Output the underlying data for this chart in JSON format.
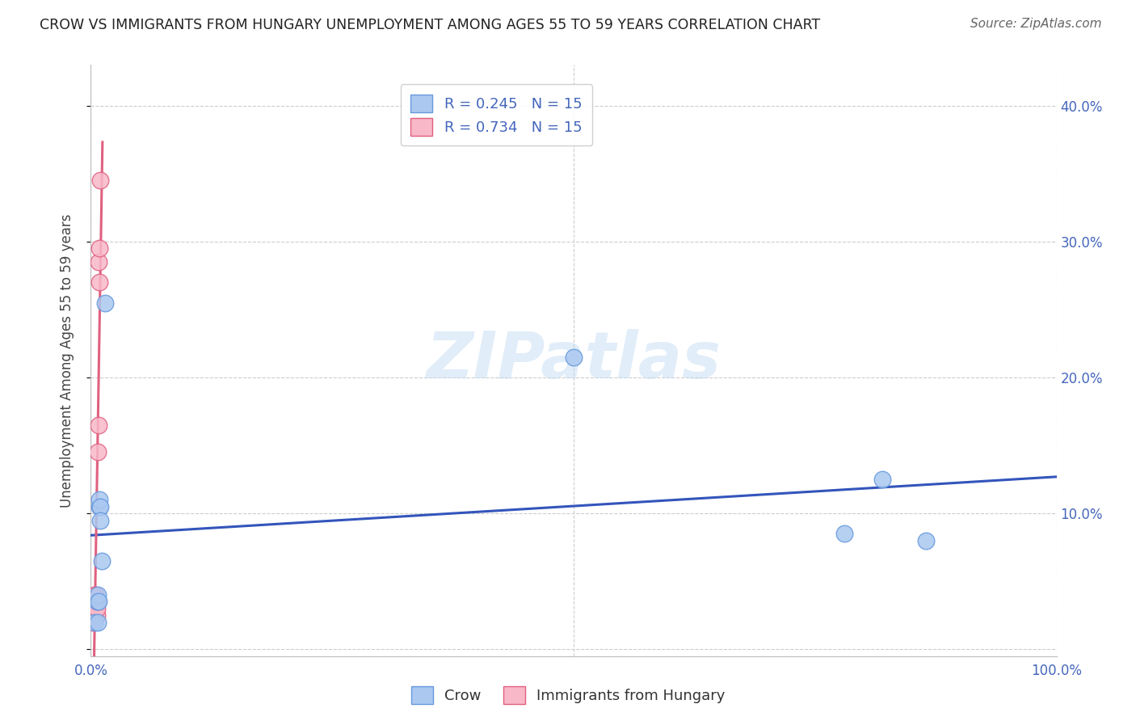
{
  "title": "CROW VS IMMIGRANTS FROM HUNGARY UNEMPLOYMENT AMONG AGES 55 TO 59 YEARS CORRELATION CHART",
  "source": "Source: ZipAtlas.com",
  "ylabel": "Unemployment Among Ages 55 to 59 years",
  "xlim": [
    0.0,
    1.0
  ],
  "ylim": [
    -0.005,
    0.43
  ],
  "crow_color": "#aac8f0",
  "crow_edge_color": "#6699dd",
  "hungary_color": "#f8b8c8",
  "hungary_edge_color": "#e06080",
  "blue_line_color": "#3355bb",
  "pink_line_color": "#e06080",
  "R_crow": 0.245,
  "N_crow": 15,
  "R_hungary": 0.734,
  "N_hungary": 15,
  "crow_x": [
    0.004,
    0.006,
    0.007,
    0.007,
    0.008,
    0.009,
    0.009,
    0.01,
    0.01,
    0.011,
    0.015,
    0.5,
    0.78,
    0.82,
    0.865
  ],
  "crow_y": [
    0.02,
    0.035,
    0.04,
    0.02,
    0.035,
    0.105,
    0.11,
    0.105,
    0.095,
    0.065,
    0.255,
    0.215,
    0.085,
    0.125,
    0.08
  ],
  "hungary_x": [
    0.002,
    0.003,
    0.004,
    0.004,
    0.005,
    0.005,
    0.006,
    0.006,
    0.007,
    0.007,
    0.008,
    0.008,
    0.009,
    0.009,
    0.01
  ],
  "hungary_y": [
    0.02,
    0.025,
    0.025,
    0.04,
    0.03,
    0.04,
    0.025,
    0.03,
    0.035,
    0.145,
    0.165,
    0.285,
    0.295,
    0.27,
    0.345
  ],
  "watermark": "ZIPatlas",
  "legend_labels": [
    "Crow",
    "Immigrants from Hungary"
  ],
  "background_color": "#ffffff",
  "grid_color": "#cccccc",
  "ytick_positions": [
    0.0,
    0.1,
    0.2,
    0.3,
    0.4
  ],
  "ytick_labels": [
    "",
    "10.0%",
    "20.0%",
    "30.0%",
    "40.0%"
  ],
  "xtick_positions": [
    0.0,
    0.5,
    1.0
  ],
  "xtick_labels": [
    "0.0%",
    "",
    "100.0%"
  ]
}
